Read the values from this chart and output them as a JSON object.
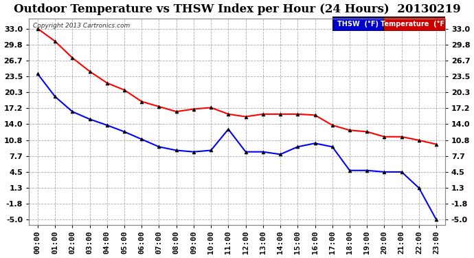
{
  "title": "Outdoor Temperature vs THSW Index per Hour (24 Hours)  20130219",
  "copyright": "Copyright 2013 Cartronics.com",
  "x_labels": [
    "00:00",
    "01:00",
    "02:00",
    "03:00",
    "04:00",
    "05:00",
    "06:00",
    "07:00",
    "08:00",
    "09:00",
    "10:00",
    "11:00",
    "12:00",
    "13:00",
    "14:00",
    "15:00",
    "16:00",
    "17:00",
    "18:00",
    "19:00",
    "20:00",
    "21:00",
    "22:00",
    "23:00"
  ],
  "thsw": [
    33.0,
    30.5,
    27.2,
    24.5,
    22.2,
    20.8,
    18.5,
    17.5,
    16.5,
    17.0,
    17.3,
    16.0,
    15.5,
    16.0,
    16.0,
    16.0,
    15.8,
    13.8,
    12.8,
    12.5,
    11.5,
    11.5,
    10.8,
    10.0
  ],
  "temperature": [
    24.0,
    19.5,
    16.5,
    15.0,
    13.8,
    12.5,
    11.0,
    9.5,
    8.8,
    8.5,
    8.8,
    13.0,
    8.5,
    8.5,
    8.0,
    9.5,
    10.2,
    9.5,
    4.8,
    4.8,
    4.5,
    4.5,
    1.3,
    -5.0
  ],
  "ylim_min": -6.0,
  "ylim_max": 35.0,
  "yticks": [
    -5.0,
    -1.8,
    1.3,
    4.5,
    7.7,
    10.8,
    14.0,
    17.2,
    20.3,
    23.5,
    26.7,
    29.8,
    33.0
  ],
  "thsw_color": "#ff0000",
  "temp_color": "#0000ff",
  "background_color": "#ffffff",
  "grid_color": "#aaaaaa",
  "title_fontsize": 12,
  "tick_fontsize": 8,
  "legend_thsw_bg": "#0000cc",
  "legend_temp_bg": "#cc0000"
}
